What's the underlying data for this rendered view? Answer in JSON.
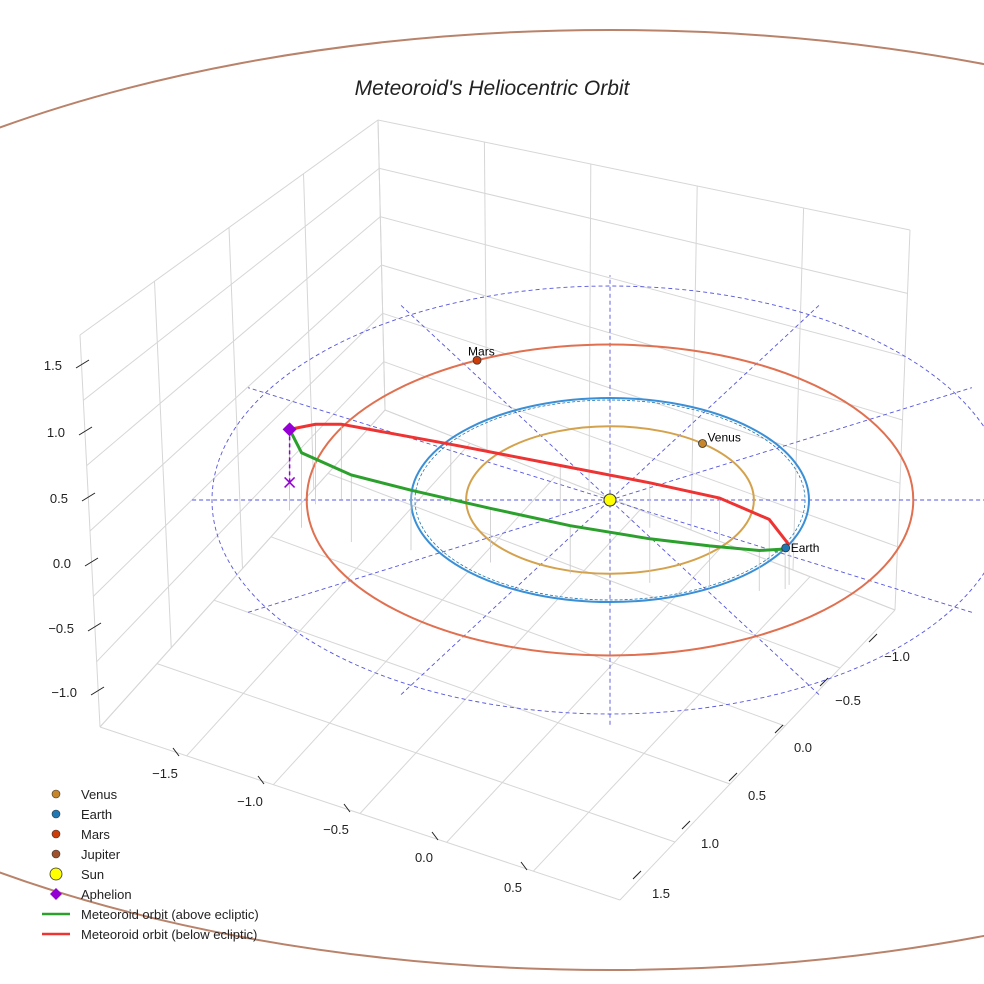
{
  "chart_data": {
    "type": "line3d",
    "title": "Meteoroid's Heliocentric Orbit",
    "axes": {
      "x_ticks": [
        "−1.5",
        "−1.0",
        "−0.5",
        "0.0",
        "0.5"
      ],
      "y_ticks": [
        "−1.0",
        "−0.5",
        "0.0",
        "0.5",
        "1.0",
        "1.5"
      ],
      "z_ticks": [
        "1.5",
        "1.0",
        "0.5",
        "0.0",
        "−0.5",
        "−1.0"
      ],
      "grid": true
    },
    "planets": [
      {
        "name": "Venus",
        "orbit_radius_au": 0.723,
        "color": "#c8862a",
        "orbit_color": "#d4a24c",
        "angle_deg": 50,
        "label": "Venus"
      },
      {
        "name": "Earth",
        "orbit_radius_au": 1.0,
        "color": "#1f77b4",
        "orbit_color": "#3a8fd6",
        "angle_deg": -28,
        "label": "Earth"
      },
      {
        "name": "Mars",
        "orbit_radius_au": 1.524,
        "color": "#cc3d0a",
        "orbit_color": "#e07050",
        "angle_deg": 116,
        "label": "Mars"
      },
      {
        "name": "Jupiter",
        "orbit_radius_au": 5.2,
        "color": "#a0522d",
        "orbit_color": "#b9826a"
      }
    ],
    "reference_circle_au": 2.0,
    "meteoroid": {
      "above_ecliptic": [
        [
          -1.61,
          0.29,
          0.41
        ],
        [
          -1.55,
          0.12,
          0.35
        ],
        [
          -1.3,
          -0.02,
          0.27
        ],
        [
          -1.0,
          -0.1,
          0.2
        ],
        [
          -0.6,
          -0.22,
          0.14
        ],
        [
          -0.2,
          -0.33,
          0.08
        ],
        [
          0.2,
          -0.42,
          0.04
        ],
        [
          0.5,
          -0.47,
          0.02
        ],
        [
          0.75,
          -0.5,
          0.005
        ],
        [
          0.88,
          -0.48,
          0.0
        ]
      ],
      "below_ecliptic": [
        [
          -1.61,
          0.29,
          0.41
        ],
        [
          -1.48,
          0.35,
          0.4
        ],
        [
          -1.35,
          0.4,
          0.35
        ],
        [
          -0.8,
          0.35,
          0.2
        ],
        [
          -0.25,
          0.24,
          0.1
        ],
        [
          0.2,
          0.12,
          0.05
        ],
        [
          0.55,
          0.0,
          0.02
        ],
        [
          0.8,
          -0.2,
          0.01
        ],
        [
          0.9,
          -0.44,
          0.0
        ]
      ],
      "aphelion": [
        -1.61,
        0.29,
        0.41
      ]
    },
    "legend": {
      "placement": "bottom-left",
      "entries": [
        {
          "label": "Venus",
          "color": "#c8862a",
          "marker": "circle"
        },
        {
          "label": "Earth",
          "color": "#1f77b4",
          "marker": "circle"
        },
        {
          "label": "Mars",
          "color": "#cc3d0a",
          "marker": "circle"
        },
        {
          "label": "Jupiter",
          "color": "#a0522d",
          "marker": "circle"
        },
        {
          "label": "Sun",
          "color": "#ffff00",
          "marker": "big-circle"
        },
        {
          "label": "Aphelion",
          "color": "#9400d3",
          "marker": "diamond"
        },
        {
          "label": "Meteoroid orbit (above ecliptic)",
          "color": "#2ca02c",
          "marker": "line"
        },
        {
          "label": "Meteoroid orbit (below ecliptic)",
          "color": "#ee3333",
          "marker": "line"
        }
      ]
    }
  }
}
